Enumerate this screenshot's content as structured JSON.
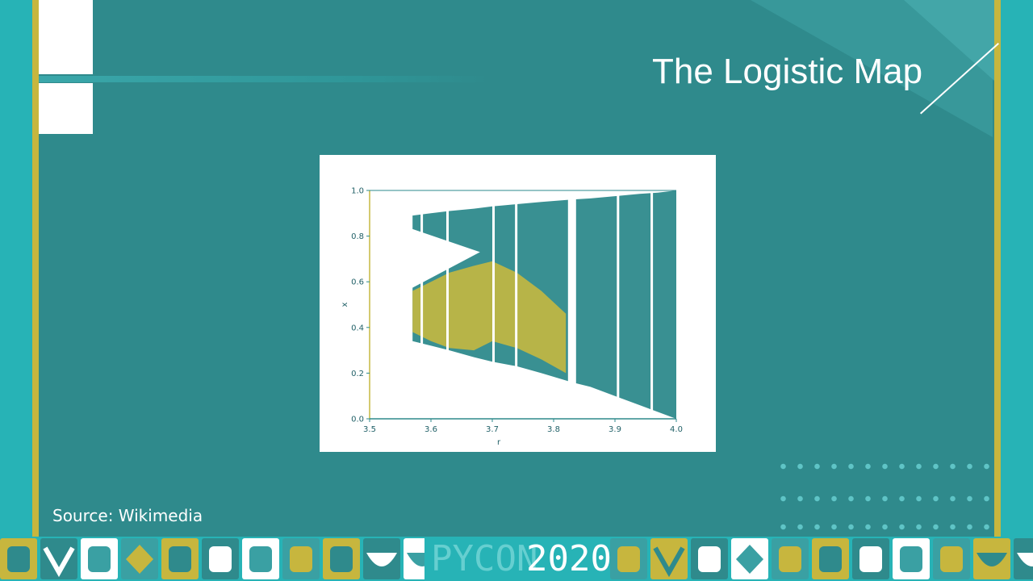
{
  "slide": {
    "title": "The Logistic Map",
    "source": "Source: Wikimedia"
  },
  "footer": {
    "word1": "PYCON",
    "word2": "2020",
    "icons": [
      "terminal-icon",
      "check-icon",
      "leaf-icon",
      "diamond-icon",
      "castle-icon",
      "robot-icon",
      "calendar-icon",
      "tools-icon",
      "shopping-cart-icon",
      "bowl-icon",
      "bridge-icon"
    ]
  },
  "colors": {
    "background": "#2f8a8c",
    "frame": "#27b3b6",
    "rail": "#c7b63e",
    "chart_teal": "#2e8a8c",
    "chart_yellow": "#c5b840"
  },
  "chart_data": {
    "type": "scatter",
    "title": "",
    "xlabel": "r",
    "ylabel": "x",
    "xlim": [
      3.5,
      4.0
    ],
    "ylim": [
      0.0,
      1.0
    ],
    "x_ticks": [
      "3.5",
      "3.6",
      "3.7",
      "3.8",
      "3.9",
      "4.0"
    ],
    "y_ticks": [
      "0.0",
      "0.2",
      "0.4",
      "0.6",
      "0.8",
      "1.0"
    ],
    "grid": false,
    "description_type": "bifurcation diagram",
    "series": [
      {
        "color": "#2e8a8c",
        "x": [
          3.57,
          3.6,
          3.63,
          3.67,
          3.7,
          3.74,
          3.78,
          3.83,
          3.86,
          3.9,
          3.94,
          3.97,
          4.0
        ],
        "upper": [
          0.89,
          0.9,
          0.91,
          0.92,
          0.93,
          0.94,
          0.95,
          0.96,
          0.965,
          0.975,
          0.985,
          0.99,
          1.0
        ],
        "lower": [
          0.34,
          0.32,
          0.3,
          0.27,
          0.25,
          0.23,
          0.2,
          0.16,
          0.14,
          0.1,
          0.06,
          0.03,
          0.0
        ]
      },
      {
        "color": "#c5b840",
        "x": [
          3.57,
          3.6,
          3.63,
          3.67,
          3.7,
          3.74,
          3.78,
          3.82
        ],
        "upper": [
          0.56,
          0.6,
          0.64,
          0.67,
          0.69,
          0.64,
          0.56,
          0.46
        ],
        "lower": [
          0.38,
          0.34,
          0.31,
          0.3,
          0.34,
          0.31,
          0.26,
          0.2
        ]
      }
    ],
    "gaps": [
      3.585,
      3.627,
      3.702,
      3.739,
      3.83,
      3.905,
      3.96
    ]
  }
}
